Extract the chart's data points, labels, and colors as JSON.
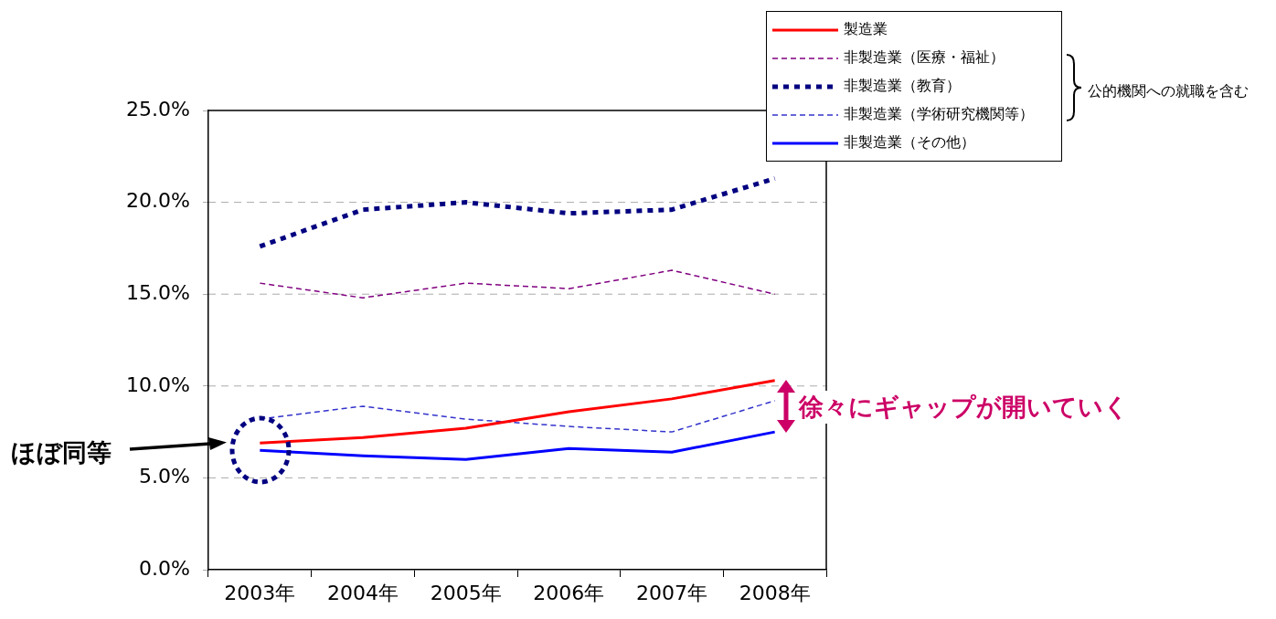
{
  "chart_data": {
    "type": "line",
    "categories": [
      "2003年",
      "2004年",
      "2005年",
      "2006年",
      "2007年",
      "2008年"
    ],
    "series": [
      {
        "name": "製造業",
        "color": "#ff0000",
        "line_style": "solid",
        "values": [
          6.9,
          7.2,
          7.7,
          8.6,
          9.3,
          10.3
        ]
      },
      {
        "name": "非製造業（医療・福祉）",
        "color": "#800080",
        "line_style": "dashed",
        "values": [
          15.6,
          14.8,
          15.6,
          15.3,
          16.3,
          15.0
        ]
      },
      {
        "name": "非製造業（教育）",
        "color": "#000080",
        "line_style": "dotted",
        "values": [
          17.6,
          19.6,
          20.0,
          19.4,
          19.6,
          21.3
        ]
      },
      {
        "name": "非製造業（学術研究機関等）",
        "color": "#3333cc",
        "line_style": "dashed",
        "values": [
          8.2,
          8.9,
          8.2,
          7.8,
          7.5,
          9.2
        ]
      },
      {
        "name": "非製造業（その他）",
        "color": "#0000ff",
        "line_style": "solid",
        "values": [
          6.5,
          6.2,
          6.0,
          6.6,
          6.4,
          7.5
        ]
      }
    ],
    "ylim": [
      0,
      25
    ],
    "yticks": [
      {
        "value": 0,
        "label": "0.0%"
      },
      {
        "value": 5,
        "label": "5.0%"
      },
      {
        "value": 10,
        "label": "10.0%"
      },
      {
        "value": 15,
        "label": "15.0%"
      },
      {
        "value": 20,
        "label": "20.0%"
      },
      {
        "value": 25,
        "label": "25.0%"
      }
    ],
    "grid": "y",
    "legend": "top right",
    "marker": "none",
    "annotations": [
      "公的機関への就職を含む",
      "ほぼ同等",
      "徐々にギャップが開いていく"
    ]
  }
}
